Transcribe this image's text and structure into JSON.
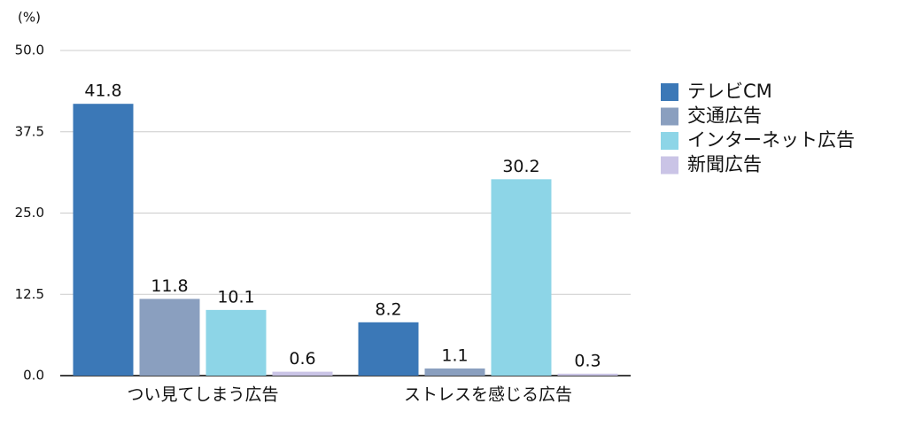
{
  "chart_data": {
    "type": "bar",
    "ylabel": "(%)",
    "categories": [
      "つい見てしまう広告",
      "ストレスを感じる広告"
    ],
    "series": [
      {
        "name": "テレビCM",
        "color": "#3b78b7",
        "values": [
          41.8,
          8.2
        ]
      },
      {
        "name": "交通広告",
        "color": "#8a9fbf",
        "values": [
          11.8,
          1.1
        ]
      },
      {
        "name": "インターネット広告",
        "color": "#8dd5e7",
        "values": [
          10.1,
          30.2
        ]
      },
      {
        "name": "新聞広告",
        "color": "#cac4e6",
        "values": [
          0.6,
          0.3
        ]
      }
    ],
    "ylim": [
      0,
      50
    ],
    "yticks": [
      {
        "value": 0,
        "label": "0.0"
      },
      12.5,
      {
        "value": 25,
        "label": "25.0"
      },
      37.5,
      {
        "value": 50,
        "label": "50.0"
      }
    ],
    "grid": true,
    "legend": "right"
  }
}
